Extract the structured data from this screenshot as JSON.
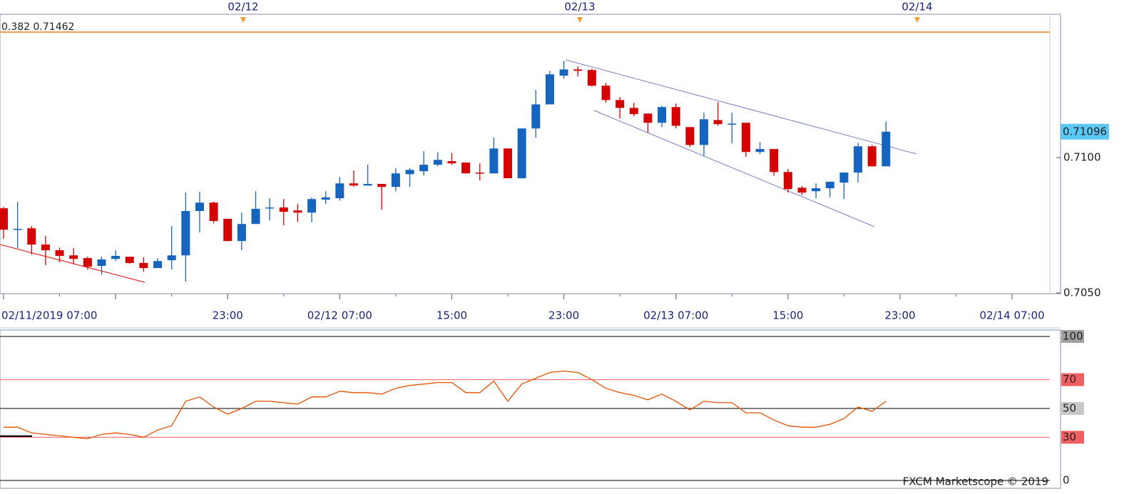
{
  "chart_data": [
    {
      "type": "candlestick",
      "date_markers": [
        "02/12",
        "02/13",
        "02/14"
      ],
      "fib_label": "0.382 0.71462",
      "categories": [
        "02/11/2019 07:00",
        null,
        null,
        null,
        null,
        null,
        null,
        null,
        null,
        null,
        null,
        null,
        null,
        null,
        null,
        null,
        "23:00",
        null,
        null,
        null,
        null,
        null,
        null,
        null,
        "02/12 07:00",
        null,
        null,
        null,
        null,
        null,
        null,
        null,
        "15:00",
        null,
        null,
        null,
        null,
        null,
        null,
        null,
        "23:00",
        null,
        null,
        null,
        null,
        null,
        null,
        null,
        "02/13 07:00",
        null,
        null,
        null,
        null,
        null,
        null,
        null,
        "15:00",
        null,
        null,
        null,
        null,
        null,
        null,
        null,
        "23:00",
        null,
        null,
        null,
        null,
        null,
        null,
        null,
        "02/14 07:00",
        null,
        null
      ],
      "open": [
        0.70813,
        0.70734,
        0.70739,
        0.70679,
        0.70658,
        0.70639,
        0.70629,
        0.706,
        0.70626,
        0.70634,
        0.70611,
        0.70592,
        0.70621,
        0.70639,
        0.70803,
        0.70834,
        0.70774,
        0.70692,
        0.70755,
        0.70813,
        0.70816,
        0.70805,
        0.70797,
        0.70845,
        0.7085,
        0.70905,
        0.70897,
        0.70903,
        0.70892,
        0.70939,
        0.7095,
        0.70974,
        0.70987,
        0.70982,
        0.70945,
        0.70942,
        0.71034,
        0.70924,
        0.71108,
        0.71197,
        0.71303,
        0.71326,
        0.71324,
        0.71266,
        0.71213,
        0.71184,
        0.71163,
        0.71129,
        0.71187,
        0.71113,
        0.71047,
        0.71139,
        0.71124,
        0.71129,
        0.71021,
        0.71032,
        0.70947,
        0.70889,
        0.70876,
        0.70887,
        0.70908,
        0.70945,
        0.71042,
        0.70968,
        null,
        null,
        null,
        null,
        null,
        null,
        null,
        null,
        null,
        null,
        null
      ],
      "high": [
        0.70818,
        0.70837,
        0.70747,
        0.70711,
        0.70668,
        0.70666,
        0.70634,
        0.70634,
        0.70658,
        0.70634,
        0.70632,
        0.70629,
        0.70747,
        0.70871,
        0.70874,
        0.70837,
        0.70774,
        0.70797,
        0.70876,
        0.7085,
        0.70847,
        0.70829,
        0.70853,
        0.70876,
        0.70929,
        0.70953,
        0.70974,
        0.70903,
        0.70961,
        0.70961,
        0.71024,
        0.71021,
        0.71018,
        0.70982,
        0.70979,
        0.71074,
        0.71034,
        0.71108,
        0.7125,
        0.71321,
        0.71358,
        0.71337,
        0.71329,
        0.71276,
        0.71224,
        0.71203,
        0.71163,
        0.71192,
        0.712,
        0.71113,
        0.71166,
        0.71205,
        0.71166,
        0.71129,
        0.71058,
        0.71032,
        0.70958,
        0.70895,
        0.70905,
        0.70911,
        0.70945,
        0.71055,
        0.71047,
        0.71134,
        null,
        null,
        null,
        null,
        null,
        null,
        null,
        null,
        null,
        null,
        null
      ],
      "low": [
        0.707,
        0.70666,
        0.70642,
        0.70603,
        0.70613,
        0.70608,
        0.70587,
        0.70568,
        0.70618,
        0.70608,
        0.70579,
        0.70592,
        0.70587,
        0.70542,
        0.70724,
        0.70758,
        0.70692,
        0.70658,
        0.70755,
        0.70768,
        0.7075,
        0.70763,
        0.70761,
        0.70829,
        0.70842,
        0.70892,
        0.70897,
        0.70808,
        0.70876,
        0.70892,
        0.70934,
        0.70968,
        0.70974,
        0.70942,
        0.70916,
        0.70942,
        0.70924,
        0.70924,
        0.71074,
        0.71197,
        0.71292,
        0.713,
        0.71263,
        0.71203,
        0.71145,
        0.71153,
        0.71092,
        0.71113,
        0.71108,
        0.71039,
        0.71008,
        0.71118,
        0.71053,
        0.71003,
        0.71013,
        0.70934,
        0.70871,
        0.70861,
        0.7085,
        0.70853,
        0.70847,
        0.70908,
        0.70968,
        0.70968,
        null,
        null,
        null,
        null,
        null,
        null,
        null,
        null,
        null,
        null,
        null
      ],
      "close": [
        0.70734,
        0.70737,
        0.70679,
        0.70658,
        0.70637,
        0.70626,
        0.70597,
        0.70624,
        0.70637,
        0.70611,
        0.70592,
        0.70618,
        0.70639,
        0.70803,
        0.70834,
        0.70766,
        0.70692,
        0.70755,
        0.70811,
        0.70816,
        0.708,
        0.70797,
        0.70847,
        0.70853,
        0.70905,
        0.70897,
        0.70903,
        0.70892,
        0.70942,
        0.70955,
        0.70974,
        0.70992,
        0.70979,
        0.70942,
        0.70942,
        0.71034,
        0.70924,
        0.71108,
        0.71197,
        0.71308,
        0.71326,
        0.71321,
        0.71266,
        0.71213,
        0.71184,
        0.71161,
        0.71129,
        0.71187,
        0.71118,
        0.71047,
        0.71142,
        0.71124,
        0.71126,
        0.71021,
        0.71032,
        0.70947,
        0.70884,
        0.70871,
        0.70887,
        0.70911,
        0.70945,
        0.71042,
        0.70968,
        0.71096,
        null,
        null,
        null,
        null,
        null,
        null,
        null,
        null,
        null,
        null,
        null
      ],
      "up_color": "#1565c0",
      "down_color": "#d50000",
      "ylim": [
        0.705,
        0.7153
      ],
      "yticks": [
        {
          "value": 0.705,
          "label": "0.7050"
        },
        {
          "value": 0.71,
          "label": "0.7100"
        }
      ]
    },
    {
      "type": "line",
      "color": "#e65100",
      "values": [
        37,
        37,
        33,
        32,
        31,
        30,
        29,
        32,
        33,
        32,
        30,
        35,
        38,
        55,
        58,
        51,
        46,
        50,
        55,
        55,
        54,
        53,
        58,
        58,
        62,
        61,
        61,
        60,
        64,
        66,
        67,
        68,
        68,
        61,
        61,
        69,
        55,
        67,
        71,
        75,
        76,
        75,
        70,
        64,
        61,
        59,
        56,
        60,
        55,
        49,
        55,
        54,
        54,
        47,
        47,
        42,
        38,
        37,
        37,
        39,
        43,
        51,
        48,
        55,
        null,
        null,
        null,
        null,
        null,
        null,
        null,
        null,
        null,
        null,
        null
      ],
      "ylim": [
        0,
        100
      ],
      "yticks": [
        0,
        30,
        50,
        70,
        100
      ],
      "watermark": "FXCM Marketscope © 2019"
    }
  ]
}
